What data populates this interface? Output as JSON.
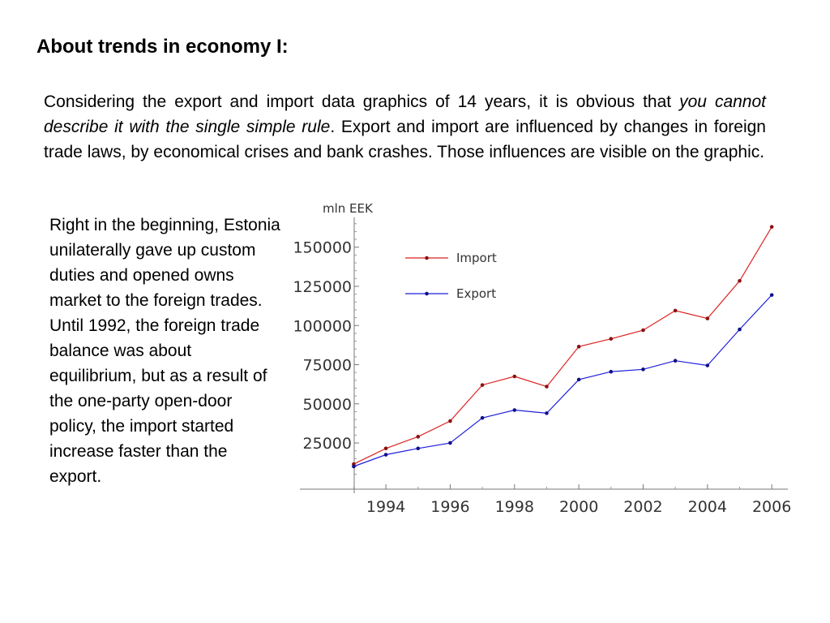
{
  "slide": {
    "title": "About trends in economy I:",
    "intro_part1": "Considering the export and import data graphics of 14 years, it is obvious that ",
    "intro_emphasis": "you cannot describe it with the single simple rule",
    "intro_part2": ". Export and import are influenced by changes in foreign trade laws, by economical crises and bank crashes. Those influences are visible on the graphic.",
    "side_text": "Right in the beginning, Estonia unilaterally gave up custom duties and opened owns market to the foreign trades. Until 1992, the foreign trade balance was about equilibrium, but as a result of the one-party open-door policy, the import started increase faster than the export."
  },
  "chart_data": {
    "type": "line",
    "title": "",
    "xlabel": "",
    "ylabel": "mln EEK",
    "x": [
      1993,
      1994,
      1995,
      1996,
      1997,
      1998,
      1999,
      2000,
      2001,
      2002,
      2003,
      2004,
      2005,
      2006
    ],
    "xlim": [
      1991.2,
      2006.5
    ],
    "ylim": [
      -4500,
      168000
    ],
    "x_ticks": [
      1994,
      1996,
      1998,
      2000,
      2002,
      2004,
      2006
    ],
    "y_ticks": [
      25000,
      50000,
      75000,
      100000,
      125000,
      150000
    ],
    "grid": false,
    "legend_position": "top-left",
    "series": [
      {
        "name": "Import",
        "color": "#dd2222",
        "marker_color": "#8b1010",
        "values": [
          11500,
          21500,
          29000,
          39000,
          62000,
          67500,
          61000,
          86500,
          91500,
          97000,
          109500,
          104500,
          128500,
          163000
        ]
      },
      {
        "name": "Export",
        "color": "#1f1fdd",
        "marker_color": "#10108b",
        "values": [
          10000,
          17500,
          21500,
          25000,
          41000,
          46000,
          44000,
          65500,
          70500,
          72000,
          77500,
          74500,
          97500,
          119500
        ]
      }
    ]
  }
}
